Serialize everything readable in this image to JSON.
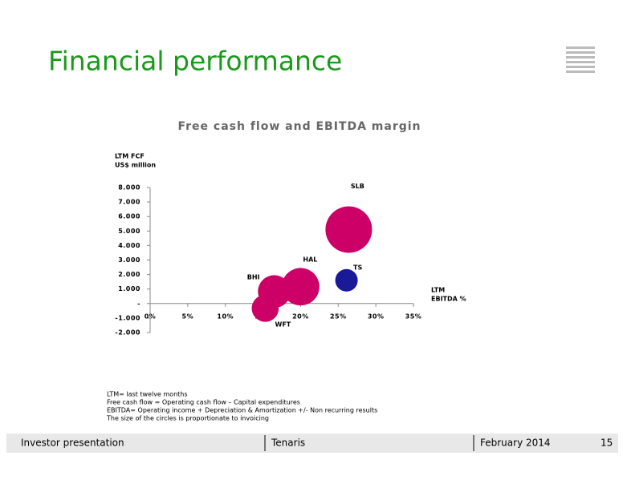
{
  "slide_title": "Financial performance",
  "chart_data": {
    "type": "bubble",
    "title": "Free cash flow and EBITDA margin",
    "y_label": [
      "LTM FCF",
      "US$ million"
    ],
    "x_label": [
      "LTM",
      "EBITDA %"
    ],
    "labels": [
      "SLB",
      "HAL",
      "BHI",
      "WFT",
      "TS"
    ],
    "x": [
      26.4,
      20,
      16.5,
      15.3,
      26.1
    ],
    "values": [
      5100,
      1160,
      830,
      -330,
      1600
    ],
    "sizes": [
      45266,
      29402,
      22364,
      15263,
      10597
    ],
    "colors": [
      "#cc0066",
      "#cc0066",
      "#cc0066",
      "#cc0066",
      "#1a1a99"
    ],
    "xlim": [
      0,
      35
    ],
    "xticks": [
      {
        "value": 0,
        "label": "0%"
      },
      {
        "value": 5,
        "label": "5%"
      },
      {
        "value": 10,
        "label": "10%"
      },
      {
        "value": 15,
        "label": "15%"
      },
      {
        "value": 20,
        "label": "20%"
      },
      {
        "value": 25,
        "label": "25%"
      },
      {
        "value": 30,
        "label": "30%"
      },
      {
        "value": 35,
        "label": "35%"
      }
    ],
    "ylim": [
      -2000,
      8000
    ],
    "yticks": [
      {
        "value": 8000,
        "label": "8.000"
      },
      {
        "value": 7000,
        "label": "7.000"
      },
      {
        "value": 6000,
        "label": "6.000"
      },
      {
        "value": 5000,
        "label": "5.000"
      },
      {
        "value": 4000,
        "label": "4.000"
      },
      {
        "value": 3000,
        "label": "3.000"
      },
      {
        "value": 2000,
        "label": "2.000"
      },
      {
        "value": 1000,
        "label": "1.000"
      },
      {
        "value": 0,
        "label": "-"
      },
      {
        "value": -1000,
        "label": "-1.000"
      },
      {
        "value": -2000,
        "label": "-2.000"
      }
    ]
  },
  "notes": [
    "LTM= last twelve months",
    "Free cash flow = Operating cash flow – Capital expenditures",
    "EBITDA= Operating income + Depreciation & Amortization +/- Non recurring results",
    "The size of the circles is proportionate to invoicing"
  ],
  "footer": {
    "left": "Investor presentation",
    "center": "Tenaris",
    "date": "February 2014",
    "page": "15"
  }
}
